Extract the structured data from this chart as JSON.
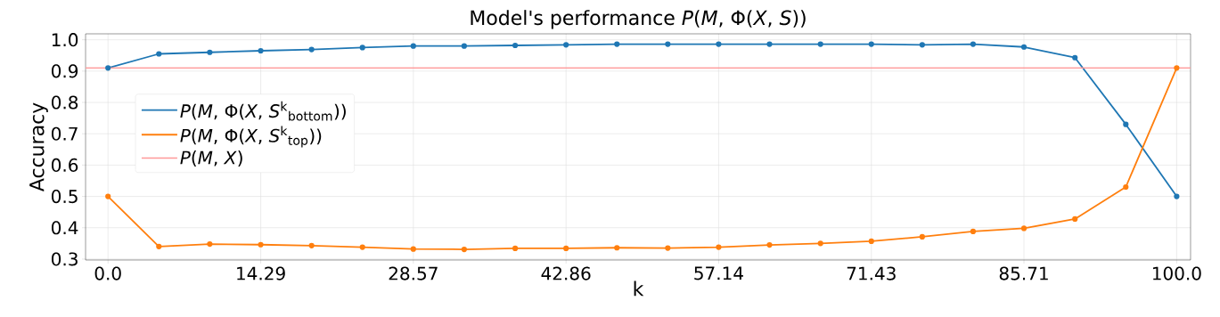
{
  "chart_data": {
    "type": "line",
    "title": "Model's performance *P*(*M*, Φ(*X*, *S*))",
    "xlabel": "k",
    "ylabel": "Accuracy",
    "x": [
      0,
      4.76,
      9.52,
      14.29,
      19.05,
      23.81,
      28.57,
      33.33,
      38.1,
      42.86,
      47.62,
      52.38,
      57.14,
      61.9,
      66.67,
      71.43,
      76.19,
      80.95,
      85.71,
      90.48,
      95.24,
      100
    ],
    "series": [
      {
        "name": "*P*(*M*, Φ(*X*, *S*$^{k}$$_{bottom}$))",
        "color": "#1f77b4",
        "values": [
          0.91,
          0.955,
          0.96,
          0.965,
          0.969,
          0.975,
          0.98,
          0.98,
          0.982,
          0.984,
          0.986,
          0.986,
          0.986,
          0.986,
          0.986,
          0.986,
          0.984,
          0.986,
          0.977,
          0.943,
          0.73,
          0.5
        ]
      },
      {
        "name": "*P*(*M*, Φ(*X*, *S*$^{k}$$_{top}$))",
        "color": "#ff7f0e",
        "values": [
          0.5,
          0.34,
          0.348,
          0.346,
          0.343,
          0.338,
          0.332,
          0.331,
          0.334,
          0.334,
          0.336,
          0.335,
          0.338,
          0.345,
          0.35,
          0.357,
          0.371,
          0.388,
          0.398,
          0.428,
          0.53,
          0.91
        ]
      }
    ],
    "ref_lines": [
      {
        "axis": "y",
        "value": 0.91,
        "label": "*P*(*M*, *X*)",
        "color": "#ff9999"
      }
    ],
    "xlim": [
      -2.1,
      101.3
    ],
    "ylim": [
      0.297,
      1.019
    ],
    "xticks": [
      {
        "value": 0,
        "label": "0.0"
      },
      14.29,
      28.57,
      42.86,
      57.14,
      71.43,
      85.71,
      {
        "value": 100,
        "label": "100.0"
      }
    ],
    "yticks": [
      0.3,
      0.4,
      0.5,
      0.6,
      0.7,
      0.8,
      0.9,
      {
        "value": 1,
        "label": "1.0"
      }
    ],
    "grid": true,
    "legend": "center left",
    "marker": "circle",
    "line_style": "solid"
  }
}
